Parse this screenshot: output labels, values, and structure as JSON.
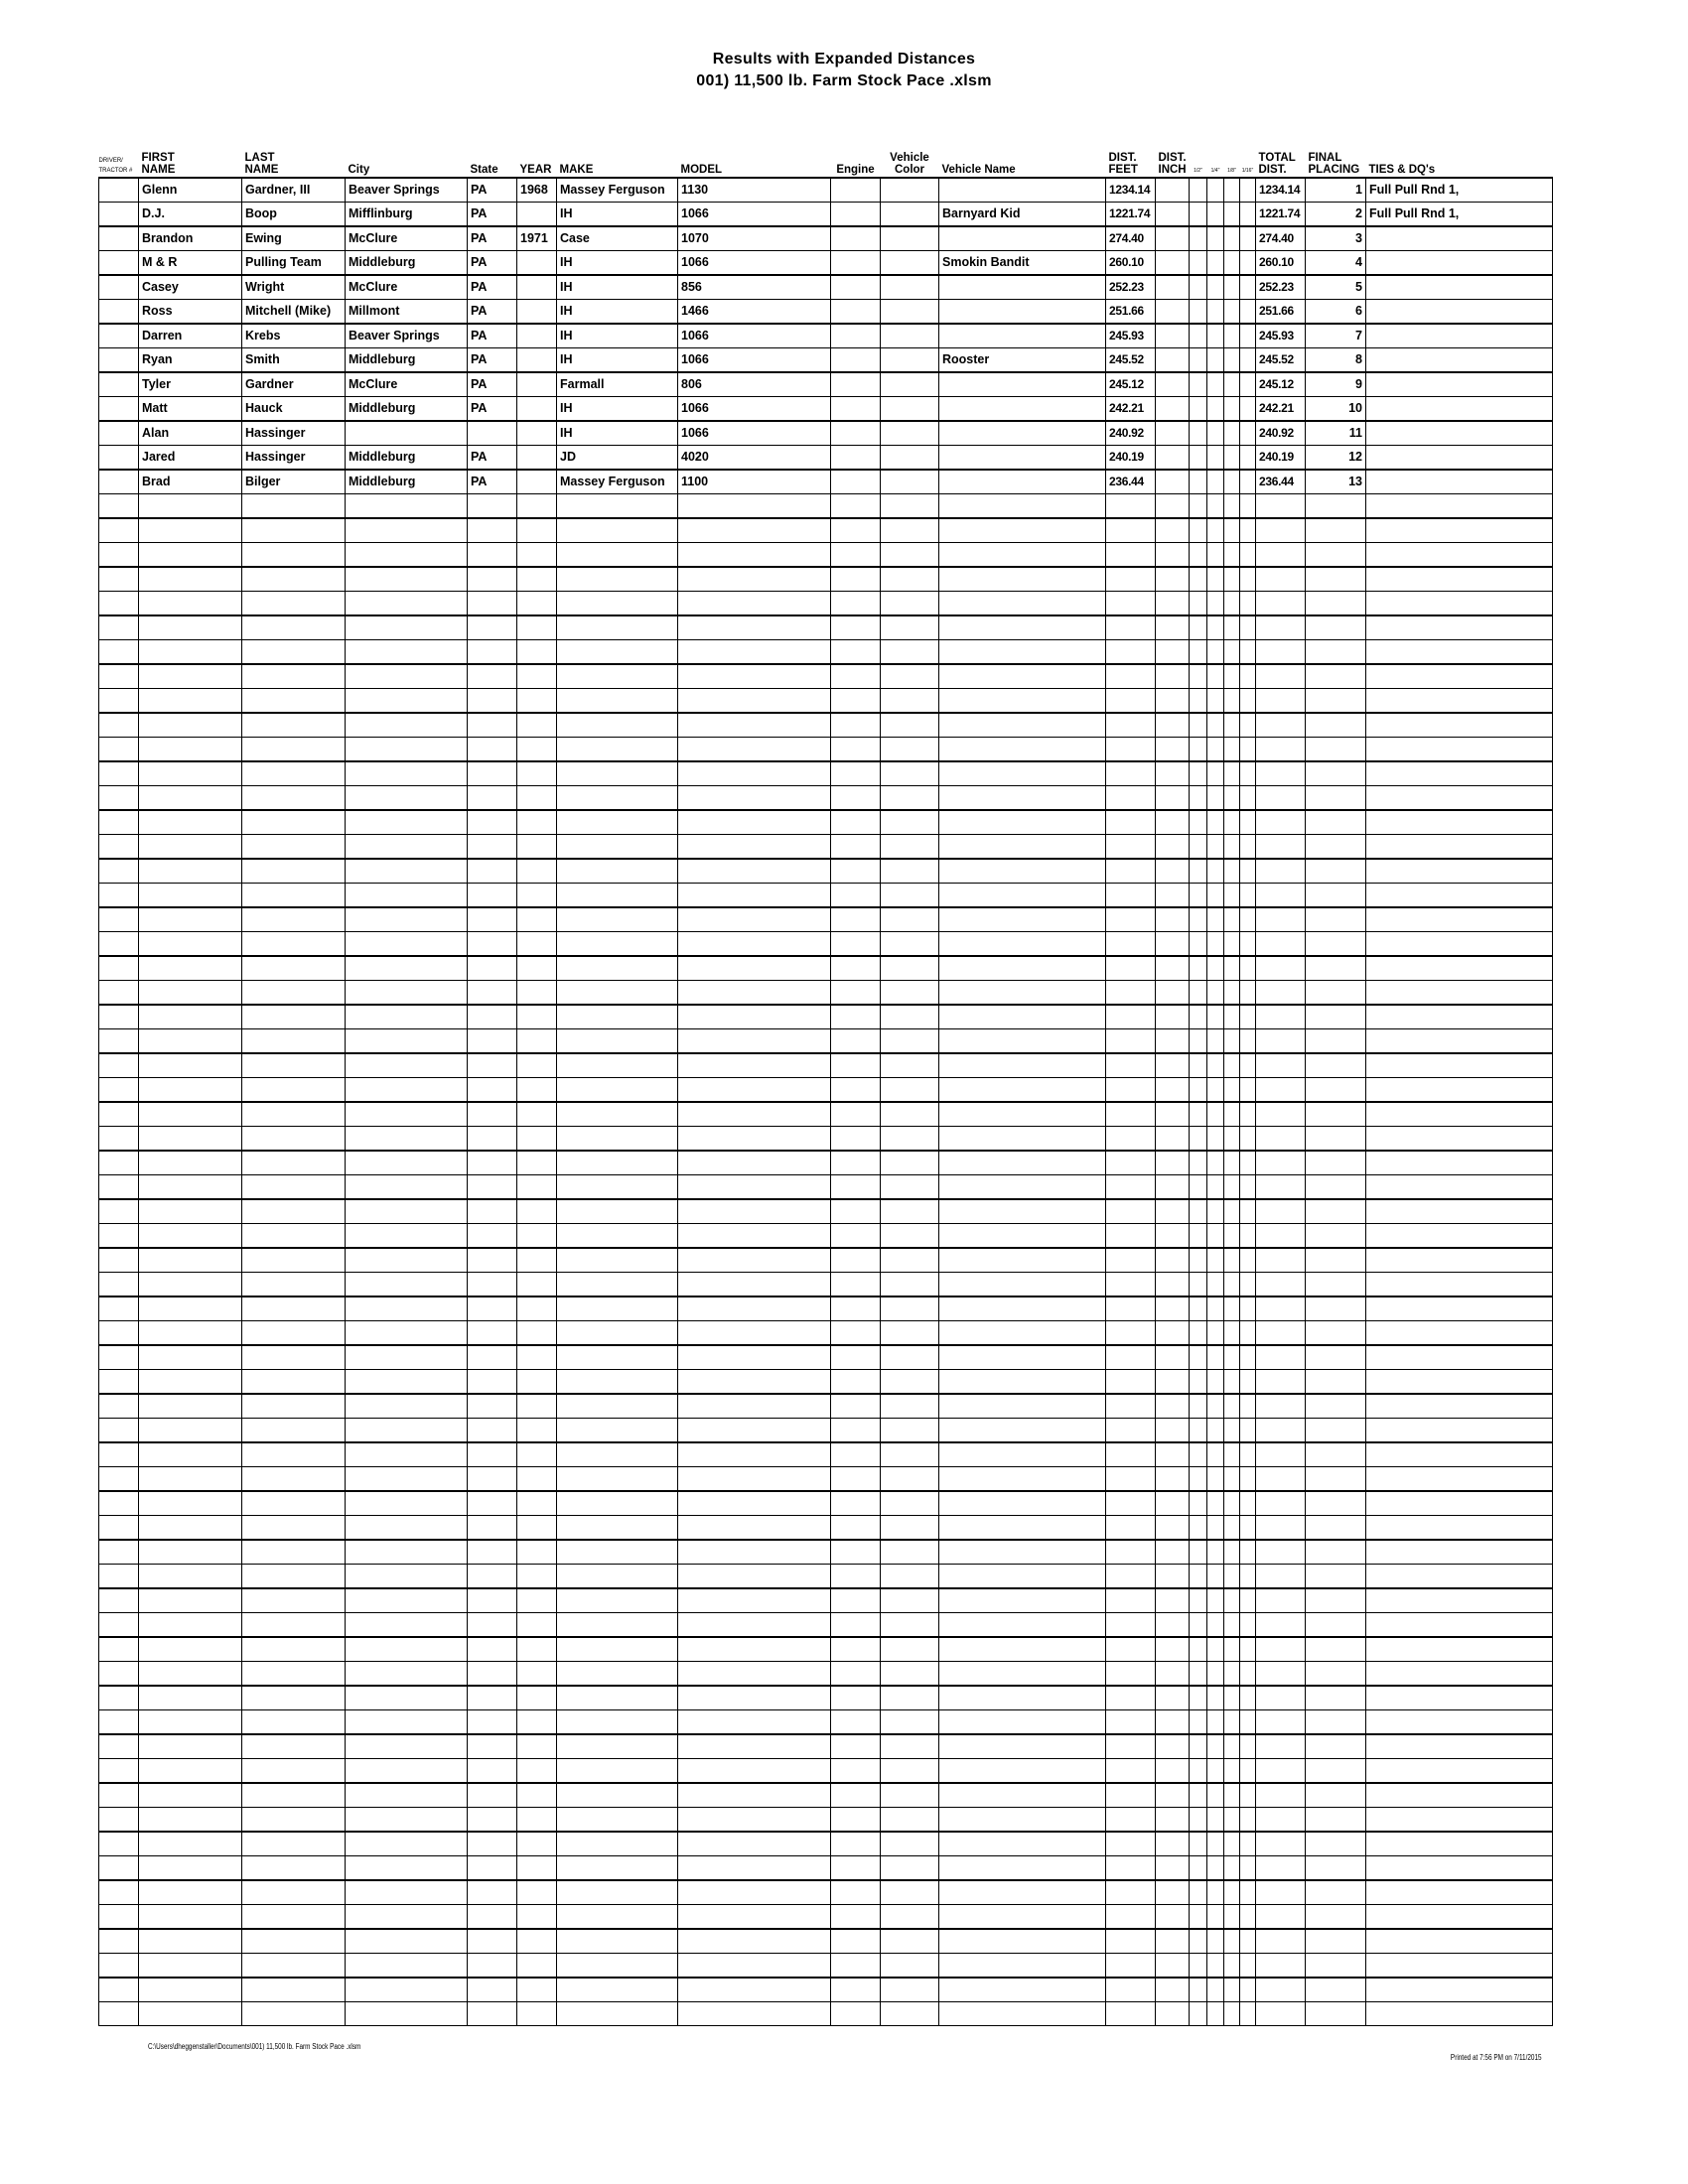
{
  "title": "Results with Expanded Distances",
  "subtitle": "001) 11,500 lb. Farm Stock Pace .xlsm",
  "headers": {
    "driver": [
      "DRIVER/",
      "TRACTOR #"
    ],
    "first": [
      "FIRST",
      "NAME"
    ],
    "last": [
      "LAST",
      "NAME"
    ],
    "city": "City",
    "state": "State",
    "year": "YEAR",
    "make": "MAKE",
    "model": "MODEL",
    "engine": "Engine",
    "color": [
      "Vehicle",
      "Color"
    ],
    "vname": "Vehicle Name",
    "feet": [
      "DIST.",
      "FEET"
    ],
    "inch": [
      "DIST.",
      "INCH"
    ],
    "fractions": [
      "1/2\"",
      "1/4\"",
      "1/8\"",
      "1/16\""
    ],
    "total": [
      "TOTAL",
      "DIST."
    ],
    "placing": [
      "FINAL",
      "PLACING"
    ],
    "ties": "TIES & DQ's"
  },
  "rows": [
    {
      "first": "Glenn",
      "last": "Gardner, III",
      "city": "Beaver Springs",
      "state": "PA",
      "year": "1968",
      "make": "Massey Ferguson",
      "model": "1130",
      "vname": "",
      "feet": "1234.14",
      "total": "1234.14",
      "place": "1",
      "ties": "Full Pull Rnd 1,"
    },
    {
      "first": "D.J.",
      "last": "Boop",
      "city": "Mifflinburg",
      "state": "PA",
      "year": "",
      "make": "IH",
      "model": "1066",
      "vname": "Barnyard Kid",
      "feet": "1221.74",
      "total": "1221.74",
      "place": "2",
      "ties": "Full Pull Rnd 1,"
    },
    {
      "first": "Brandon",
      "last": "Ewing",
      "city": "McClure",
      "state": "PA",
      "year": "1971",
      "make": "Case",
      "model": "1070",
      "vname": "",
      "feet": "274.40",
      "total": "274.40",
      "place": "3",
      "ties": ""
    },
    {
      "first": "M & R",
      "last": "Pulling Team",
      "city": "Middleburg",
      "state": "PA",
      "year": "",
      "make": "IH",
      "model": "1066",
      "vname": "Smokin Bandit",
      "feet": "260.10",
      "total": "260.10",
      "place": "4",
      "ties": ""
    },
    {
      "first": "Casey",
      "last": "Wright",
      "city": "McClure",
      "state": "PA",
      "year": "",
      "make": "IH",
      "model": "856",
      "vname": "",
      "feet": "252.23",
      "total": "252.23",
      "place": "5",
      "ties": ""
    },
    {
      "first": "Ross",
      "last": "Mitchell (Mike)",
      "city": "Millmont",
      "state": "PA",
      "year": "",
      "make": "IH",
      "model": "1466",
      "vname": "",
      "feet": "251.66",
      "total": "251.66",
      "place": "6",
      "ties": ""
    },
    {
      "first": "Darren",
      "last": "Krebs",
      "city": "Beaver Springs",
      "state": "PA",
      "year": "",
      "make": "IH",
      "model": "1066",
      "vname": "",
      "feet": "245.93",
      "total": "245.93",
      "place": "7",
      "ties": ""
    },
    {
      "first": "Ryan",
      "last": "Smith",
      "city": "Middleburg",
      "state": "PA",
      "year": "",
      "make": "IH",
      "model": "1066",
      "vname": "Rooster",
      "feet": "245.52",
      "total": "245.52",
      "place": "8",
      "ties": ""
    },
    {
      "first": "Tyler",
      "last": "Gardner",
      "city": "McClure",
      "state": "PA",
      "year": "",
      "make": "Farmall",
      "model": "806",
      "vname": "",
      "feet": "245.12",
      "total": "245.12",
      "place": "9",
      "ties": ""
    },
    {
      "first": "Matt",
      "last": "Hauck",
      "city": "Middleburg",
      "state": "PA",
      "year": "",
      "make": "IH",
      "model": "1066",
      "vname": "",
      "feet": "242.21",
      "total": "242.21",
      "place": "10",
      "ties": ""
    },
    {
      "first": "Alan",
      "last": "Hassinger",
      "city": "",
      "state": "",
      "year": "",
      "make": "IH",
      "model": "1066",
      "vname": "",
      "feet": "240.92",
      "total": "240.92",
      "place": "11",
      "ties": ""
    },
    {
      "first": "Jared",
      "last": "Hassinger",
      "city": "Middleburg",
      "state": "PA",
      "year": "",
      "make": "JD",
      "model": "4020",
      "vname": "",
      "feet": "240.19",
      "total": "240.19",
      "place": "12",
      "ties": ""
    },
    {
      "first": "Brad",
      "last": "Bilger",
      "city": "Middleburg",
      "state": "PA",
      "year": "",
      "make": "Massey Ferguson",
      "model": "1100",
      "vname": "",
      "feet": "236.44",
      "total": "236.44",
      "place": "13",
      "ties": ""
    }
  ],
  "blank_rows": 63,
  "footer": {
    "path": "C:\\Users\\dheggenstaller\\Documents\\001) 11,500 lb. Farm Stock Pace .xlsm",
    "printed": "Printed at 7:56 PM on 7/11/2015"
  }
}
